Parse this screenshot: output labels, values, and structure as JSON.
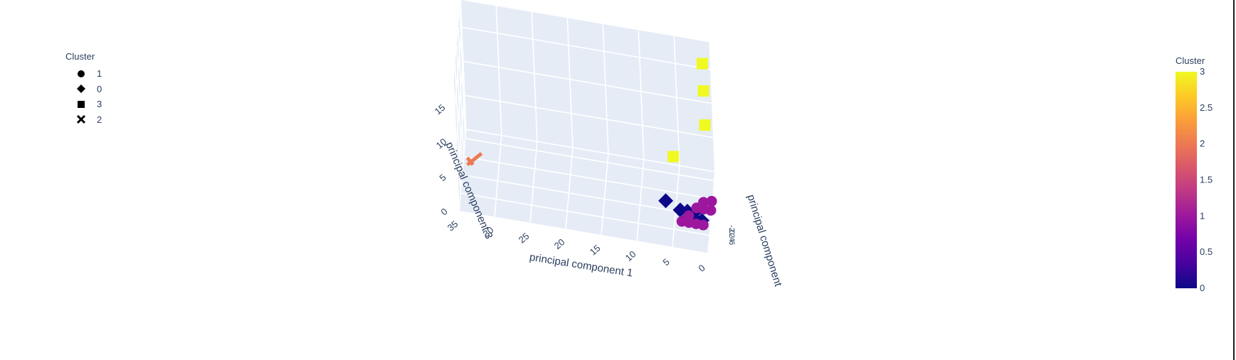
{
  "chart_data": {
    "type": "scatter3d",
    "axes": {
      "x": {
        "title": "principal component 1",
        "ticks": [
          "35",
          "30",
          "25",
          "20",
          "15",
          "10",
          "5",
          "0"
        ]
      },
      "y": {
        "title": "principal component",
        "ticks": [
          "-2",
          "0",
          "2",
          "4",
          "6"
        ]
      },
      "z": {
        "title": "principal component 3",
        "ticks": [
          "0",
          "5",
          "10",
          "15"
        ]
      }
    },
    "legend": {
      "title": "Cluster",
      "placement": "top-left",
      "items": [
        {
          "label": "1",
          "symbol": "circle"
        },
        {
          "label": "0",
          "symbol": "diamond"
        },
        {
          "label": "3",
          "symbol": "square"
        },
        {
          "label": "2",
          "symbol": "x"
        }
      ]
    },
    "colorbar": {
      "title": "Cluster",
      "range": [
        0,
        3
      ],
      "ticks": [
        "0",
        "0.5",
        "1",
        "1.5",
        "2",
        "2.5",
        "3"
      ],
      "colorscale": [
        "#0d0887",
        "#46039f",
        "#7201a8",
        "#9c179e",
        "#bd3786",
        "#d8576b",
        "#ed7953",
        "#fb9f3a",
        "#fdca26",
        "#f0f921"
      ]
    },
    "series": [
      {
        "cluster": 3,
        "symbol": "square",
        "color": "#f0f921",
        "points": [
          [
            1,
            6,
            17
          ],
          [
            1,
            6,
            13
          ],
          [
            1,
            6,
            8
          ],
          [
            5,
            2,
            8
          ]
        ]
      },
      {
        "cluster": 2,
        "symbol": "x",
        "color": "#ed7953",
        "points": [
          [
            33,
            1,
            4
          ]
        ]
      },
      {
        "cluster": 0,
        "symbol": "diamond",
        "color": "#0d0887",
        "points": [
          [
            6,
            0,
            4
          ],
          [
            4,
            0,
            3
          ],
          [
            3,
            0,
            3
          ],
          [
            3,
            0,
            2
          ],
          [
            2,
            0,
            3
          ],
          [
            2,
            0,
            2
          ],
          [
            1,
            0,
            2
          ]
        ]
      },
      {
        "cluster": 1,
        "symbol": "circle",
        "color": "#9c179e",
        "points": [
          [
            4,
            1,
            0
          ],
          [
            3,
            1,
            0
          ],
          [
            3,
            1,
            1
          ],
          [
            2,
            2,
            1
          ],
          [
            2,
            1,
            0
          ],
          [
            1,
            2,
            1
          ],
          [
            1,
            1,
            0
          ],
          [
            0,
            2,
            1
          ],
          [
            1,
            2,
            2
          ],
          [
            0,
            3,
            1
          ]
        ]
      }
    ]
  }
}
